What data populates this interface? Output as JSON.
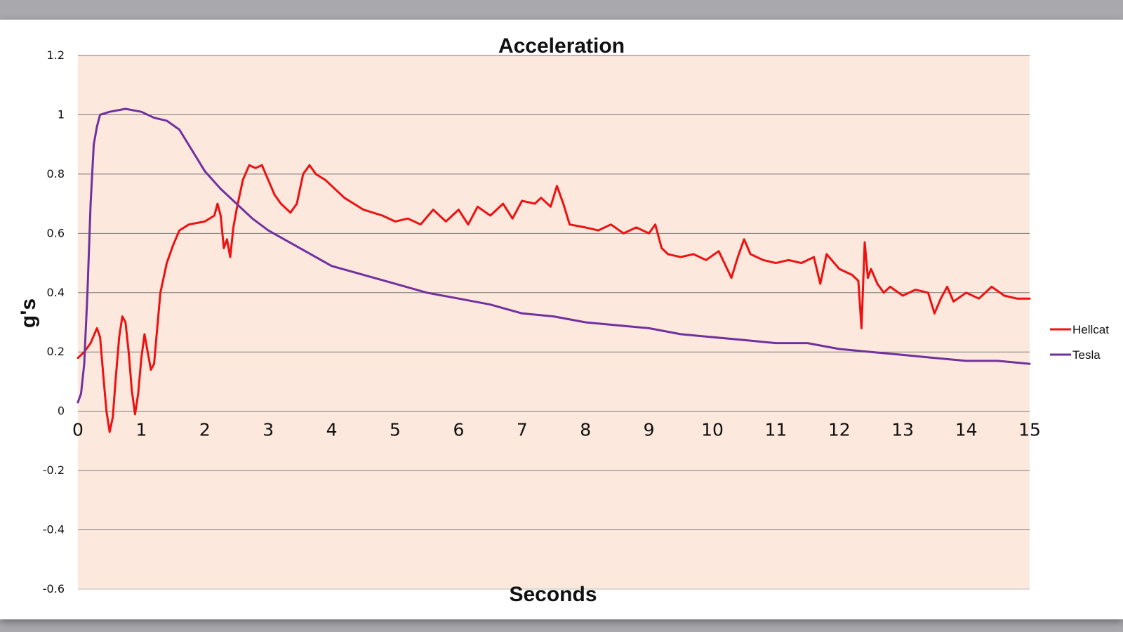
{
  "chart_data": {
    "type": "line",
    "title": "Acceleration",
    "xlabel": "Seconds",
    "ylabel": "g's",
    "xlim": [
      0,
      15
    ],
    "ylim": [
      -0.6,
      1.2
    ],
    "x_ticks": [
      "0",
      "1",
      "2",
      "3",
      "4",
      "5",
      "6",
      "7",
      "8",
      "9",
      "10",
      "11",
      "12",
      "13",
      "14",
      "15"
    ],
    "y_ticks": [
      "1.2",
      "1",
      "0.8",
      "0.6",
      "0.4",
      "0.2",
      "0",
      "-0.2",
      "-0.4",
      "-0.6"
    ],
    "grid": true,
    "legend": "right",
    "plot_background": "#fce8dc",
    "series": [
      {
        "name": "Hellcat",
        "color": "#ee1111",
        "points": [
          [
            0.0,
            0.18
          ],
          [
            0.1,
            0.2
          ],
          [
            0.2,
            0.23
          ],
          [
            0.3,
            0.28
          ],
          [
            0.35,
            0.25
          ],
          [
            0.4,
            0.12
          ],
          [
            0.45,
            0.0
          ],
          [
            0.5,
            -0.07
          ],
          [
            0.55,
            -0.02
          ],
          [
            0.6,
            0.12
          ],
          [
            0.65,
            0.25
          ],
          [
            0.7,
            0.32
          ],
          [
            0.75,
            0.3
          ],
          [
            0.8,
            0.2
          ],
          [
            0.85,
            0.07
          ],
          [
            0.9,
            -0.01
          ],
          [
            0.95,
            0.06
          ],
          [
            1.0,
            0.18
          ],
          [
            1.05,
            0.26
          ],
          [
            1.1,
            0.2
          ],
          [
            1.15,
            0.14
          ],
          [
            1.2,
            0.16
          ],
          [
            1.25,
            0.28
          ],
          [
            1.3,
            0.4
          ],
          [
            1.4,
            0.5
          ],
          [
            1.5,
            0.56
          ],
          [
            1.6,
            0.61
          ],
          [
            1.75,
            0.63
          ],
          [
            2.0,
            0.64
          ],
          [
            2.15,
            0.66
          ],
          [
            2.2,
            0.7
          ],
          [
            2.25,
            0.66
          ],
          [
            2.3,
            0.55
          ],
          [
            2.35,
            0.58
          ],
          [
            2.4,
            0.52
          ],
          [
            2.45,
            0.62
          ],
          [
            2.5,
            0.68
          ],
          [
            2.6,
            0.78
          ],
          [
            2.7,
            0.83
          ],
          [
            2.8,
            0.82
          ],
          [
            2.9,
            0.83
          ],
          [
            3.0,
            0.78
          ],
          [
            3.1,
            0.73
          ],
          [
            3.2,
            0.7
          ],
          [
            3.35,
            0.67
          ],
          [
            3.45,
            0.7
          ],
          [
            3.55,
            0.8
          ],
          [
            3.65,
            0.83
          ],
          [
            3.75,
            0.8
          ],
          [
            3.9,
            0.78
          ],
          [
            4.0,
            0.76
          ],
          [
            4.2,
            0.72
          ],
          [
            4.5,
            0.68
          ],
          [
            4.8,
            0.66
          ],
          [
            5.0,
            0.64
          ],
          [
            5.2,
            0.65
          ],
          [
            5.4,
            0.63
          ],
          [
            5.6,
            0.68
          ],
          [
            5.8,
            0.64
          ],
          [
            6.0,
            0.68
          ],
          [
            6.15,
            0.63
          ],
          [
            6.3,
            0.69
          ],
          [
            6.5,
            0.66
          ],
          [
            6.7,
            0.7
          ],
          [
            6.85,
            0.65
          ],
          [
            7.0,
            0.71
          ],
          [
            7.2,
            0.7
          ],
          [
            7.3,
            0.72
          ],
          [
            7.45,
            0.69
          ],
          [
            7.55,
            0.76
          ],
          [
            7.65,
            0.7
          ],
          [
            7.75,
            0.63
          ],
          [
            8.0,
            0.62
          ],
          [
            8.2,
            0.61
          ],
          [
            8.4,
            0.63
          ],
          [
            8.6,
            0.6
          ],
          [
            8.8,
            0.62
          ],
          [
            9.0,
            0.6
          ],
          [
            9.1,
            0.63
          ],
          [
            9.2,
            0.55
          ],
          [
            9.3,
            0.53
          ],
          [
            9.5,
            0.52
          ],
          [
            9.7,
            0.53
          ],
          [
            9.9,
            0.51
          ],
          [
            10.1,
            0.54
          ],
          [
            10.3,
            0.45
          ],
          [
            10.4,
            0.52
          ],
          [
            10.5,
            0.58
          ],
          [
            10.6,
            0.53
          ],
          [
            10.8,
            0.51
          ],
          [
            11.0,
            0.5
          ],
          [
            11.2,
            0.51
          ],
          [
            11.4,
            0.5
          ],
          [
            11.6,
            0.52
          ],
          [
            11.7,
            0.43
          ],
          [
            11.8,
            0.53
          ],
          [
            12.0,
            0.48
          ],
          [
            12.2,
            0.46
          ],
          [
            12.3,
            0.44
          ],
          [
            12.35,
            0.28
          ],
          [
            12.4,
            0.57
          ],
          [
            12.45,
            0.45
          ],
          [
            12.5,
            0.48
          ],
          [
            12.6,
            0.43
          ],
          [
            12.7,
            0.4
          ],
          [
            12.8,
            0.42
          ],
          [
            13.0,
            0.39
          ],
          [
            13.2,
            0.41
          ],
          [
            13.4,
            0.4
          ],
          [
            13.5,
            0.33
          ],
          [
            13.6,
            0.38
          ],
          [
            13.7,
            0.42
          ],
          [
            13.8,
            0.37
          ],
          [
            14.0,
            0.4
          ],
          [
            14.2,
            0.38
          ],
          [
            14.4,
            0.42
          ],
          [
            14.6,
            0.39
          ],
          [
            14.8,
            0.38
          ],
          [
            15.0,
            0.38
          ]
        ]
      },
      {
        "name": "Tesla",
        "color": "#7030a0",
        "points": [
          [
            0.0,
            0.03
          ],
          [
            0.05,
            0.06
          ],
          [
            0.1,
            0.16
          ],
          [
            0.15,
            0.4
          ],
          [
            0.2,
            0.7
          ],
          [
            0.25,
            0.9
          ],
          [
            0.3,
            0.96
          ],
          [
            0.35,
            1.0
          ],
          [
            0.5,
            1.01
          ],
          [
            0.75,
            1.02
          ],
          [
            1.0,
            1.01
          ],
          [
            1.2,
            0.99
          ],
          [
            1.4,
            0.98
          ],
          [
            1.6,
            0.95
          ],
          [
            1.8,
            0.88
          ],
          [
            2.0,
            0.81
          ],
          [
            2.25,
            0.75
          ],
          [
            2.5,
            0.7
          ],
          [
            2.75,
            0.65
          ],
          [
            3.0,
            0.61
          ],
          [
            3.5,
            0.55
          ],
          [
            4.0,
            0.49
          ],
          [
            4.5,
            0.46
          ],
          [
            5.0,
            0.43
          ],
          [
            5.5,
            0.4
          ],
          [
            6.0,
            0.38
          ],
          [
            6.5,
            0.36
          ],
          [
            7.0,
            0.33
          ],
          [
            7.5,
            0.32
          ],
          [
            8.0,
            0.3
          ],
          [
            8.5,
            0.29
          ],
          [
            9.0,
            0.28
          ],
          [
            9.5,
            0.26
          ],
          [
            10.0,
            0.25
          ],
          [
            10.5,
            0.24
          ],
          [
            11.0,
            0.23
          ],
          [
            11.5,
            0.23
          ],
          [
            12.0,
            0.21
          ],
          [
            12.5,
            0.2
          ],
          [
            13.0,
            0.19
          ],
          [
            13.5,
            0.18
          ],
          [
            14.0,
            0.17
          ],
          [
            14.5,
            0.17
          ],
          [
            15.0,
            0.16
          ]
        ]
      }
    ]
  }
}
